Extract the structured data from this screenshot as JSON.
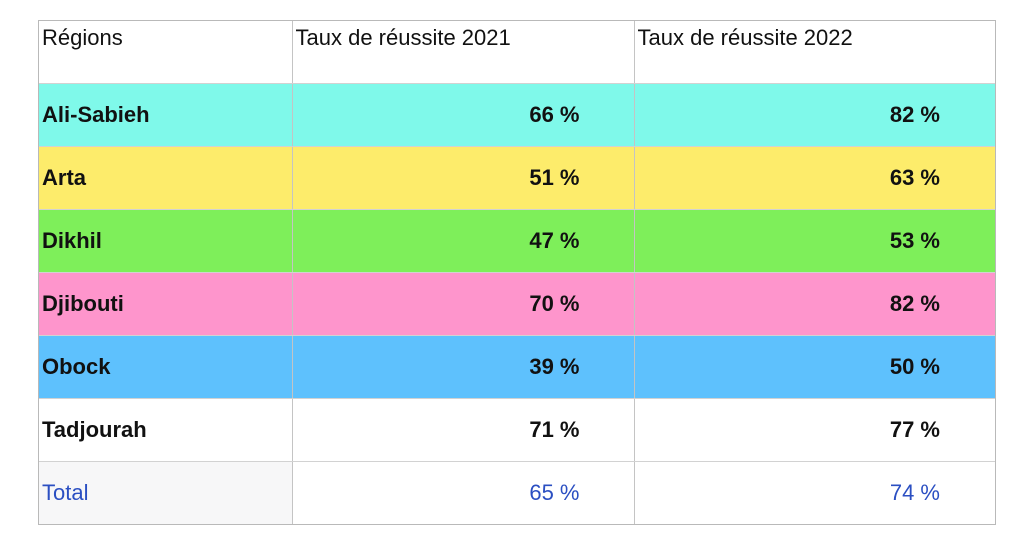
{
  "table": {
    "headers": [
      "Régions",
      "Taux de réussite 2021",
      "Taux de réussite 2022"
    ],
    "rows": [
      {
        "region": "Ali-Sabieh",
        "y2021": "66 %",
        "y2022": "82 %",
        "color": "#7ff9ea"
      },
      {
        "region": "Arta",
        "y2021": "51 %",
        "y2022": "63 %",
        "color": "#fdec6b"
      },
      {
        "region": "Dikhil",
        "y2021": "47 %",
        "y2022": "53 %",
        "color": "#7eef5a"
      },
      {
        "region": "Djibouti",
        "y2021": "70 %",
        "y2022": "82 %",
        "color": "#fe95cc"
      },
      {
        "region": "Obock",
        "y2021": "39 %",
        "y2022": "50 %",
        "color": "#5ec1fd"
      },
      {
        "region": "Tadjourah",
        "y2021": "71 %",
        "y2022": "77 %",
        "color": "#ffffff"
      }
    ],
    "total": {
      "region": "Total",
      "y2021": "65 %",
      "y2022": "74 %",
      "color": "#2b4fc2"
    }
  }
}
